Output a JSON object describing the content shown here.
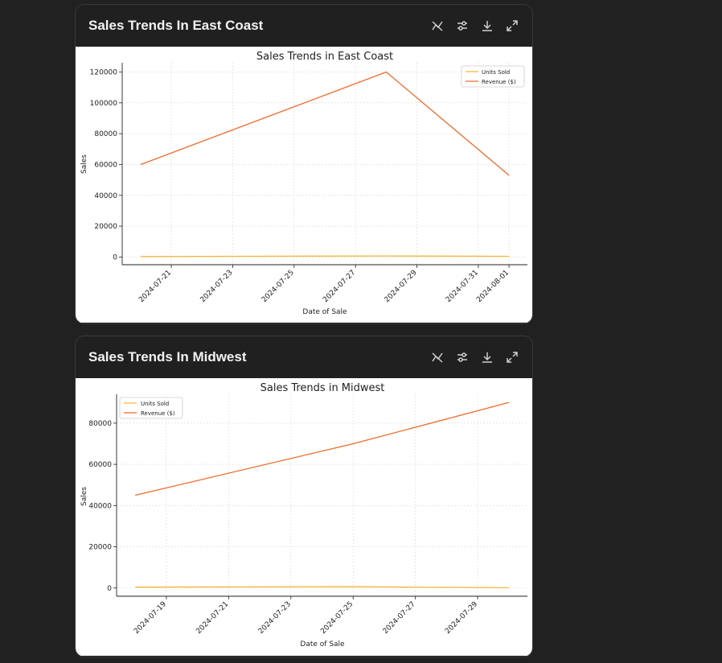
{
  "cards": [
    {
      "header_title": "Sales Trends In East Coast",
      "toolbar": [
        "interactive-toggle-icon",
        "settings-icon",
        "download-icon",
        "expand-icon"
      ]
    },
    {
      "header_title": "Sales Trends In Midwest",
      "toolbar": [
        "interactive-toggle-icon",
        "settings-icon",
        "download-icon",
        "expand-icon"
      ]
    }
  ],
  "colors": {
    "units": "#f5b83d",
    "revenue": "#f06a2b",
    "background": "#212121",
    "header": "#202020"
  },
  "chart_data": [
    {
      "type": "line",
      "title": "Sales Trends in East Coast",
      "xlabel": "Date of Sale",
      "ylabel": "Sales",
      "x_tick_labels": [
        "2024-07-21",
        "2024-07-23",
        "2024-07-25",
        "2024-07-27",
        "2024-07-29",
        "2024-07-31",
        "2024-08-01"
      ],
      "y_tick_labels": [
        "0",
        "20000",
        "40000",
        "60000",
        "80000",
        "100000",
        "120000"
      ],
      "ylim": [
        -5000,
        126000
      ],
      "grid": true,
      "legend_placement": "top-right",
      "series": [
        {
          "name": "Units Sold",
          "x": [
            "2024-07-20",
            "2024-07-28",
            "2024-08-01"
          ],
          "values": [
            300,
            700,
            500
          ]
        },
        {
          "name": "Revenue ($)",
          "x": [
            "2024-07-20",
            "2024-07-28",
            "2024-08-01"
          ],
          "values": [
            60000,
            120000,
            53000
          ]
        }
      ]
    },
    {
      "type": "line",
      "title": "Sales Trends in Midwest",
      "xlabel": "Date of Sale",
      "ylabel": "Sales",
      "x_tick_labels": [
        "2024-07-19",
        "2024-07-21",
        "2024-07-23",
        "2024-07-25",
        "2024-07-27",
        "2024-07-29"
      ],
      "y_tick_labels": [
        "0",
        "20000",
        "40000",
        "60000",
        "80000"
      ],
      "ylim": [
        -4000,
        94000
      ],
      "grid": true,
      "legend_placement": "top-left",
      "series": [
        {
          "name": "Units Sold",
          "x": [
            "2024-07-18",
            "2024-07-25",
            "2024-07-30"
          ],
          "values": [
            400,
            600,
            100
          ]
        },
        {
          "name": "Revenue ($)",
          "x": [
            "2024-07-18",
            "2024-07-25",
            "2024-07-30"
          ],
          "values": [
            45000,
            70000,
            90000
          ]
        }
      ]
    }
  ]
}
